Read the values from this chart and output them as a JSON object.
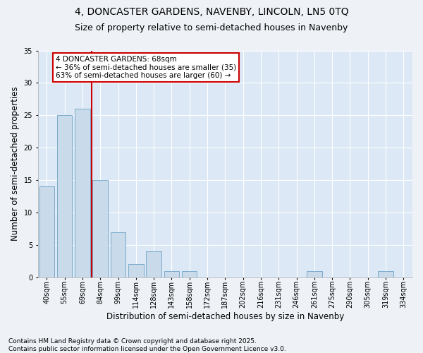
{
  "title1": "4, DONCASTER GARDENS, NAVENBY, LINCOLN, LN5 0TQ",
  "title2": "Size of property relative to semi-detached houses in Navenby",
  "xlabel": "Distribution of semi-detached houses by size in Navenby",
  "ylabel": "Number of semi-detached properties",
  "categories": [
    "40sqm",
    "55sqm",
    "69sqm",
    "84sqm",
    "99sqm",
    "114sqm",
    "128sqm",
    "143sqm",
    "158sqm",
    "172sqm",
    "187sqm",
    "202sqm",
    "216sqm",
    "231sqm",
    "246sqm",
    "261sqm",
    "275sqm",
    "290sqm",
    "305sqm",
    "319sqm",
    "334sqm"
  ],
  "values": [
    14,
    25,
    26,
    15,
    7,
    2,
    4,
    1,
    1,
    0,
    0,
    0,
    0,
    0,
    0,
    1,
    0,
    0,
    0,
    1,
    0
  ],
  "bar_color": "#c9daea",
  "bar_edge_color": "#7aabcc",
  "vline_x": 2.5,
  "vline_color": "#cc0000",
  "annotation_text": "4 DONCASTER GARDENS: 68sqm\n← 36% of semi-detached houses are smaller (35)\n63% of semi-detached houses are larger (60) →",
  "annotation_box_color": "#ffffff",
  "annotation_box_edge": "#cc0000",
  "ylim": [
    0,
    35
  ],
  "yticks": [
    0,
    5,
    10,
    15,
    20,
    25,
    30,
    35
  ],
  "footer1": "Contains HM Land Registry data © Crown copyright and database right 2025.",
  "footer2": "Contains public sector information licensed under the Open Government Licence v3.0.",
  "bg_color": "#eef2f7",
  "plot_bg_color": "#dce8f5",
  "grid_color": "#ffffff",
  "title_fontsize": 10,
  "subtitle_fontsize": 9,
  "tick_fontsize": 7,
  "label_fontsize": 8.5,
  "footer_fontsize": 6.5,
  "annot_fontsize": 7.5
}
